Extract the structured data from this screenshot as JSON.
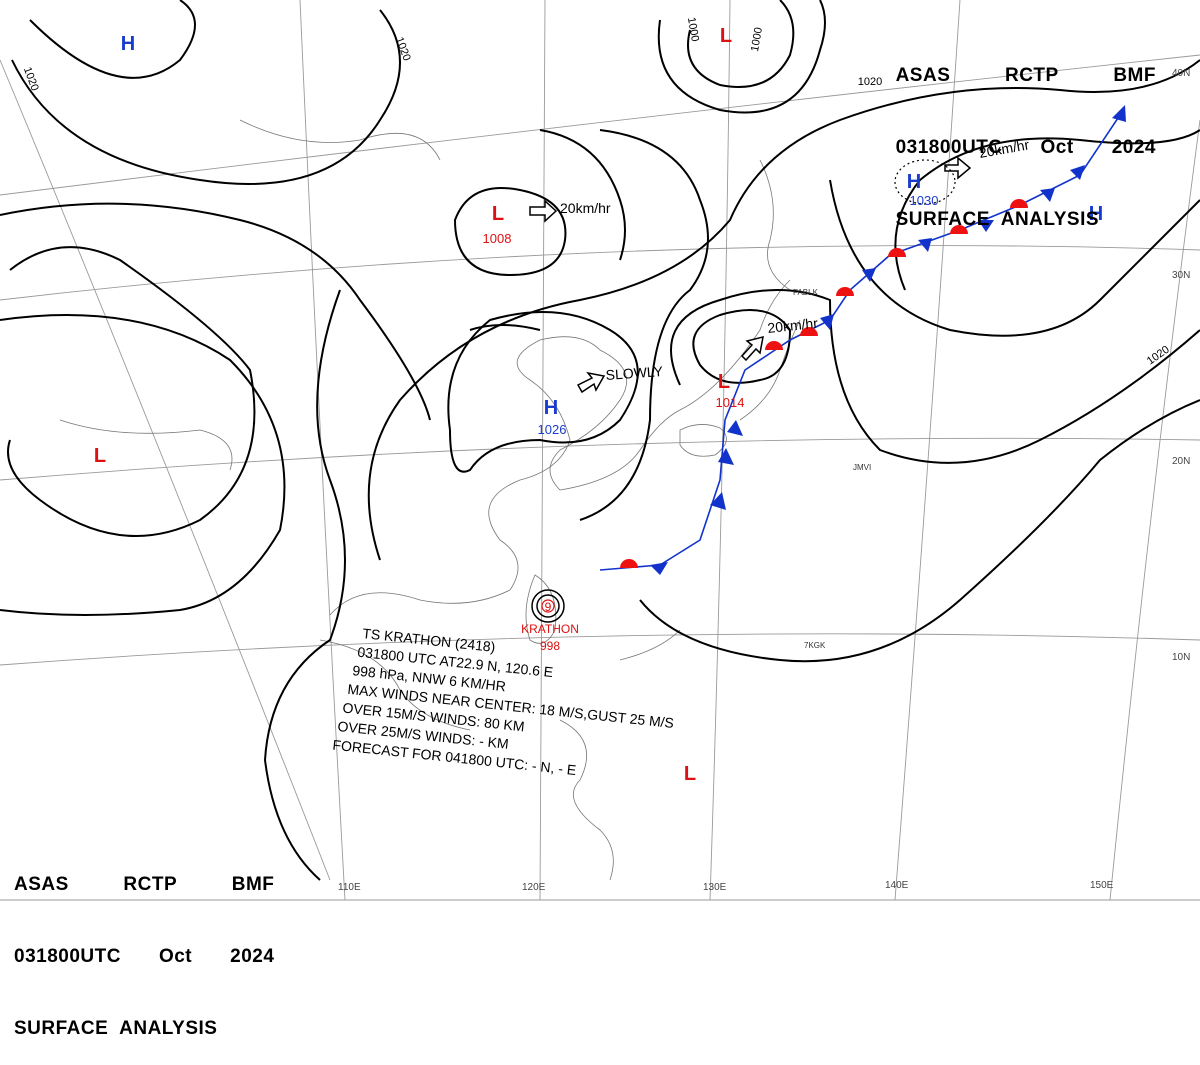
{
  "header": {
    "line1": [
      "ASAS",
      "RCTP",
      "BMF"
    ],
    "line2": [
      "031800UTC",
      "Oct",
      "2024"
    ],
    "line3": "SURFACE  ANALYSIS"
  },
  "pressure_centers": [
    {
      "type": "H",
      "value": ""
    },
    {
      "type": "L",
      "value": ""
    },
    {
      "type": "L",
      "value": "1008"
    },
    {
      "type": "H",
      "value": "1026"
    },
    {
      "type": "L",
      "value": "1014"
    },
    {
      "type": "H",
      "value": "1030"
    },
    {
      "type": "H",
      "value": ""
    },
    {
      "type": "L",
      "value": ""
    },
    {
      "type": "L",
      "value": ""
    }
  ],
  "isobar_labels": [
    "1020",
    "1020",
    "1020",
    "1000",
    "1000",
    "1020",
    "1020",
    "1000"
  ],
  "motion_labels": [
    "20km/hr",
    "SLOWLY",
    "20km/hr",
    "20km/hr"
  ],
  "typhoon": {
    "name": "KRATHON",
    "pressure": "998",
    "number": "9",
    "bulletin": [
      "TS  KRATHON  (2418)",
      "031800  UTC  AT22.9  N,  120.6  E",
      "998  hPa,  NNW  6  KM/HR",
      "MAX WINDS NEAR CENTER: 18  M/S,GUST 25  M/S",
      "OVER  15M/S  WINDS:  80  KM",
      "OVER  25M/S  WINDS:  -  KM",
      "FORECAST FOR 041800 UTC:  -  N,  -  E"
    ]
  },
  "lat_labels": [
    "40N",
    "30N",
    "20N",
    "10N"
  ],
  "lon_labels": [
    "110E",
    "120E",
    "130E",
    "140E",
    "150E"
  ],
  "station_labels": [
    "FABLK",
    "JMVI",
    "7KGK"
  ],
  "colors": {
    "isobar": "#000000",
    "high": "#1a3ccc",
    "low": "#dd1111",
    "cold_front": "#1133cc",
    "warm_front": "#ee1111",
    "grid": "#9a9a9a",
    "coast": "#777777"
  }
}
